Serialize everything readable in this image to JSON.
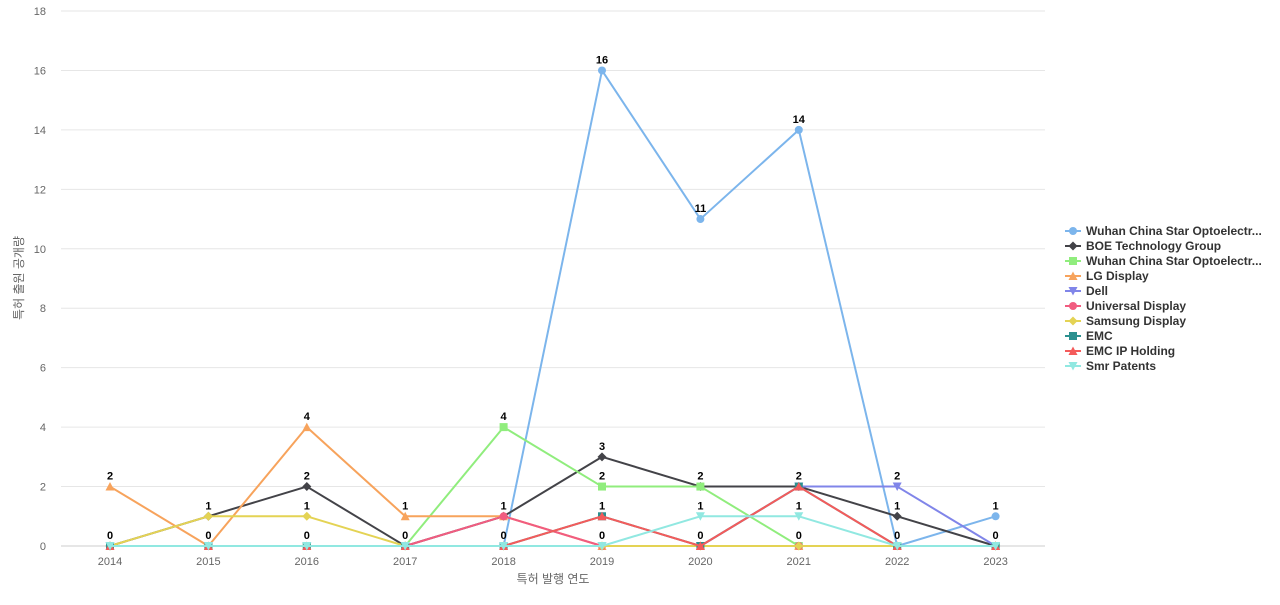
{
  "chart_data": {
    "type": "line",
    "categories": [
      "2014",
      "2015",
      "2016",
      "2017",
      "2018",
      "2019",
      "2020",
      "2021",
      "2022",
      "2023"
    ],
    "xlabel": "특허 발행 연도",
    "ylabel": "특허 출원 공개량",
    "ylim": [
      0,
      18
    ],
    "yticks": [
      0,
      2,
      4,
      6,
      8,
      10,
      12,
      14,
      16,
      18
    ],
    "grid": true,
    "legend_position": "right",
    "series": [
      {
        "name": "Wuhan China Star Optoelectr...",
        "color": "#7cb5ec",
        "marker": "circle",
        "values": [
          0,
          0,
          0,
          0,
          0,
          16,
          11,
          14,
          0,
          1
        ]
      },
      {
        "name": "BOE Technology Group",
        "color": "#434348",
        "marker": "diamond",
        "values": [
          0,
          1,
          2,
          0,
          1,
          3,
          2,
          2,
          1,
          0
        ]
      },
      {
        "name": "Wuhan China Star Optoelectr...",
        "color": "#90ed7d",
        "marker": "square",
        "values": [
          0,
          0,
          0,
          0,
          4,
          2,
          2,
          0,
          0,
          0
        ]
      },
      {
        "name": "LG Display",
        "color": "#f7a35c",
        "marker": "triangle",
        "values": [
          2,
          0,
          4,
          1,
          1,
          0,
          0,
          0,
          0,
          0
        ]
      },
      {
        "name": "Dell",
        "color": "#8085e9",
        "marker": "triangle-down",
        "values": [
          0,
          0,
          0,
          0,
          0,
          0,
          0,
          2,
          2,
          0
        ]
      },
      {
        "name": "Universal Display",
        "color": "#f15c80",
        "marker": "circle",
        "values": [
          0,
          0,
          0,
          0,
          1,
          0,
          0,
          0,
          0,
          0
        ]
      },
      {
        "name": "Samsung Display",
        "color": "#e4d354",
        "marker": "diamond",
        "values": [
          0,
          1,
          1,
          0,
          0,
          0,
          0,
          0,
          0,
          0
        ]
      },
      {
        "name": "EMC",
        "color": "#2b908f",
        "marker": "square",
        "values": [
          0,
          0,
          0,
          0,
          0,
          1,
          0,
          2,
          0,
          0
        ]
      },
      {
        "name": "EMC IP Holding",
        "color": "#f45b5b",
        "marker": "triangle",
        "values": [
          0,
          0,
          0,
          0,
          0,
          1,
          0,
          2,
          0,
          0
        ]
      },
      {
        "name": "Smr Patents",
        "color": "#91e8e1",
        "marker": "triangle-down",
        "values": [
          0,
          0,
          0,
          0,
          0,
          0,
          1,
          1,
          0,
          0
        ]
      }
    ],
    "point_labels": [
      2,
      1,
      4,
      1,
      4,
      16,
      11,
      14,
      2,
      1,
      0,
      0,
      2,
      0,
      1,
      3,
      2,
      2,
      1,
      0,
      0,
      0,
      1,
      0,
      0,
      2,
      0,
      1,
      0,
      0,
      0,
      0,
      0,
      0,
      0,
      1,
      1,
      0
    ]
  }
}
